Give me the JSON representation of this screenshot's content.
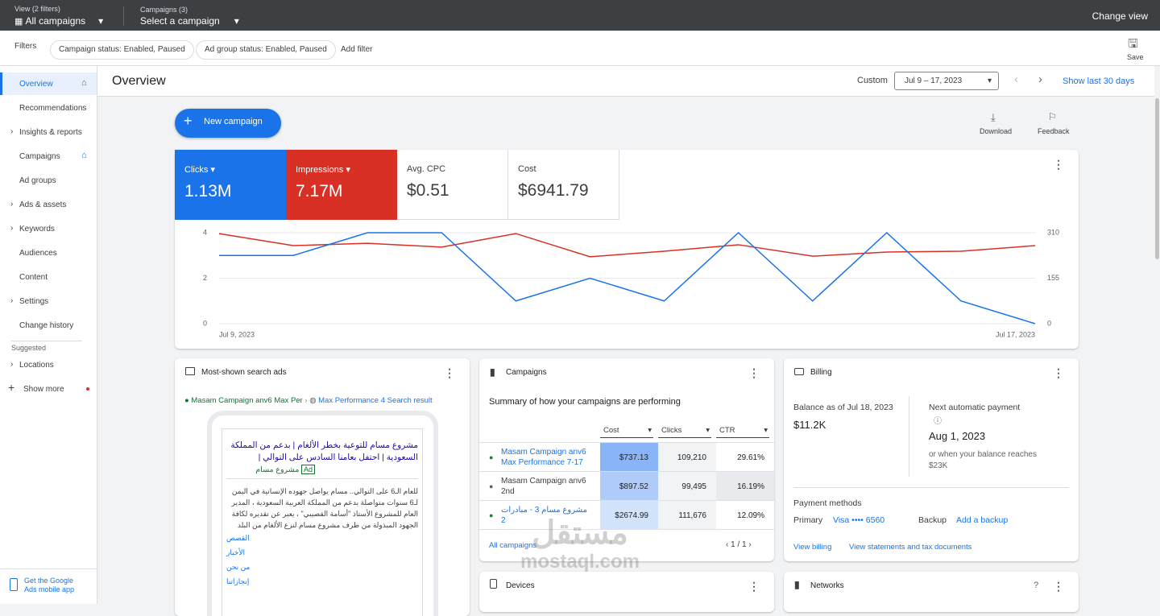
{
  "topbar": {
    "view_label": "View (2 filters)",
    "view_value": "All campaigns",
    "campaigns_label": "Campaigns (3)",
    "campaigns_value": "Select a campaign",
    "change_view": "Change view"
  },
  "filters": {
    "label": "Filters",
    "chips": [
      "Campaign status: Enabled, Paused",
      "Ad group status: Enabled, Paused"
    ],
    "add": "Add filter",
    "save": "Save"
  },
  "nav": {
    "items": [
      "Overview",
      "Recommendations",
      "Insights & reports",
      "Campaigns",
      "Ad groups",
      "Ads & assets",
      "Keywords",
      "Audiences",
      "Content",
      "Settings",
      "Change history"
    ],
    "suggested": "Suggested",
    "locations": "Locations",
    "show_more": "Show more",
    "app": [
      "Get the Google",
      "Ads mobile app"
    ]
  },
  "header": {
    "title": "Overview",
    "custom": "Custom",
    "range": "Jul 9 – 17, 2023",
    "show_last": "Show last 30 days"
  },
  "actions": {
    "new_campaign": "New campaign",
    "download": "Download",
    "feedback": "Feedback"
  },
  "metrics": [
    {
      "label": "Avg. CPC",
      "value": "$0.51"
    },
    {
      "label": "Cost",
      "value": "$6941.79"
    }
  ],
  "chart_data": {
    "type": "line",
    "categories": [
      "Jul 9, 2023",
      null,
      null,
      null,
      null,
      null,
      null,
      null,
      null,
      null,
      null,
      "Jul 17, 2023"
    ],
    "series": [
      {
        "name": "Clicks",
        "total": "1.13M",
        "color": "#1a73e8",
        "values": [
          3,
          3,
          4,
          4,
          1,
          2,
          1,
          4,
          1,
          4,
          1,
          0
        ]
      },
      {
        "name": "Impressions",
        "total": "7.17M",
        "color": "#d93025",
        "axis": "y2",
        "values": [
          307,
          266,
          274,
          261,
          307,
          228,
          247,
          269,
          230,
          244,
          247,
          266
        ]
      }
    ],
    "ylim": [
      0,
      4
    ],
    "yticks": [
      0,
      2,
      4
    ],
    "y2lim": [
      0,
      310
    ],
    "y2ticks": [
      0,
      155,
      310
    ],
    "grid": true
  },
  "ads_card": {
    "title": "Most-shown search ads",
    "campaign": "Masam Campaign anv6 Max Per",
    "ad_group": "Max Performance 4 Search result",
    "headline": "مشروع مسام للتوعية بخطر الألغام | بدعم من المملكة السعودية | احتفل بعامنا السادس على التوالي |",
    "ad_tag": "Ad",
    "display_url": "مشروع مسام",
    "description": "للعام الـ6 على التوالي.. مسام يواصل جهوده الإنسانية في اليمن لـ6 سنوات متواصلة بدعم من المملكة العربية السعودية ، المدير العام للمشروع الأستاذ \"أسامة القصيبي\" ، يعبر عن تقديره لكافة الجهود المبذولة من طرف مشروع مسام لنزع الألغام من البلد الشقيق اليمن ، المشروع يتقدم بكوادر...",
    "links": [
      "القصص",
      "الأخبار",
      "من نحن",
      "إنجازاتنا"
    ]
  },
  "campaigns_card": {
    "title": "Campaigns",
    "summary": "Summary of how your campaigns are performing",
    "columns": [
      "Cost",
      "Clicks",
      "CTR"
    ],
    "rows": [
      [
        "Masam Campaign anv6 Max Performance 7-17",
        "$737.13",
        "109,210",
        "29.61%"
      ],
      [
        "Masam Campaign anv6 2nd",
        "$897.52",
        "99,495",
        "16.19%"
      ],
      [
        "مشروع مسام 3 - مبادرات 2",
        "$2674.99",
        "111,676",
        "12.09%"
      ]
    ],
    "all": "All campaigns",
    "pages": "1 / 1"
  },
  "billing_card": {
    "title": "Billing",
    "balance_label": "Balance as of Jul 18, 2023",
    "balance": "$11.2K",
    "next_label": "Next automatic payment",
    "next_date": "Aug 1, 2023",
    "next_note": "or when your balance reaches $23K",
    "methods": "Payment methods",
    "primary": "Primary",
    "primary_card": "Visa •••• 6560",
    "backup": "Backup",
    "add_backup": "Add a backup",
    "view_billing": "View billing",
    "view_statements": "View statements and tax documents"
  },
  "devices_card": {
    "title": "Devices"
  },
  "networks_card": {
    "title": "Networks"
  },
  "watermark": {
    "arabic": "مستقل",
    "latin": "mostaql.com"
  }
}
